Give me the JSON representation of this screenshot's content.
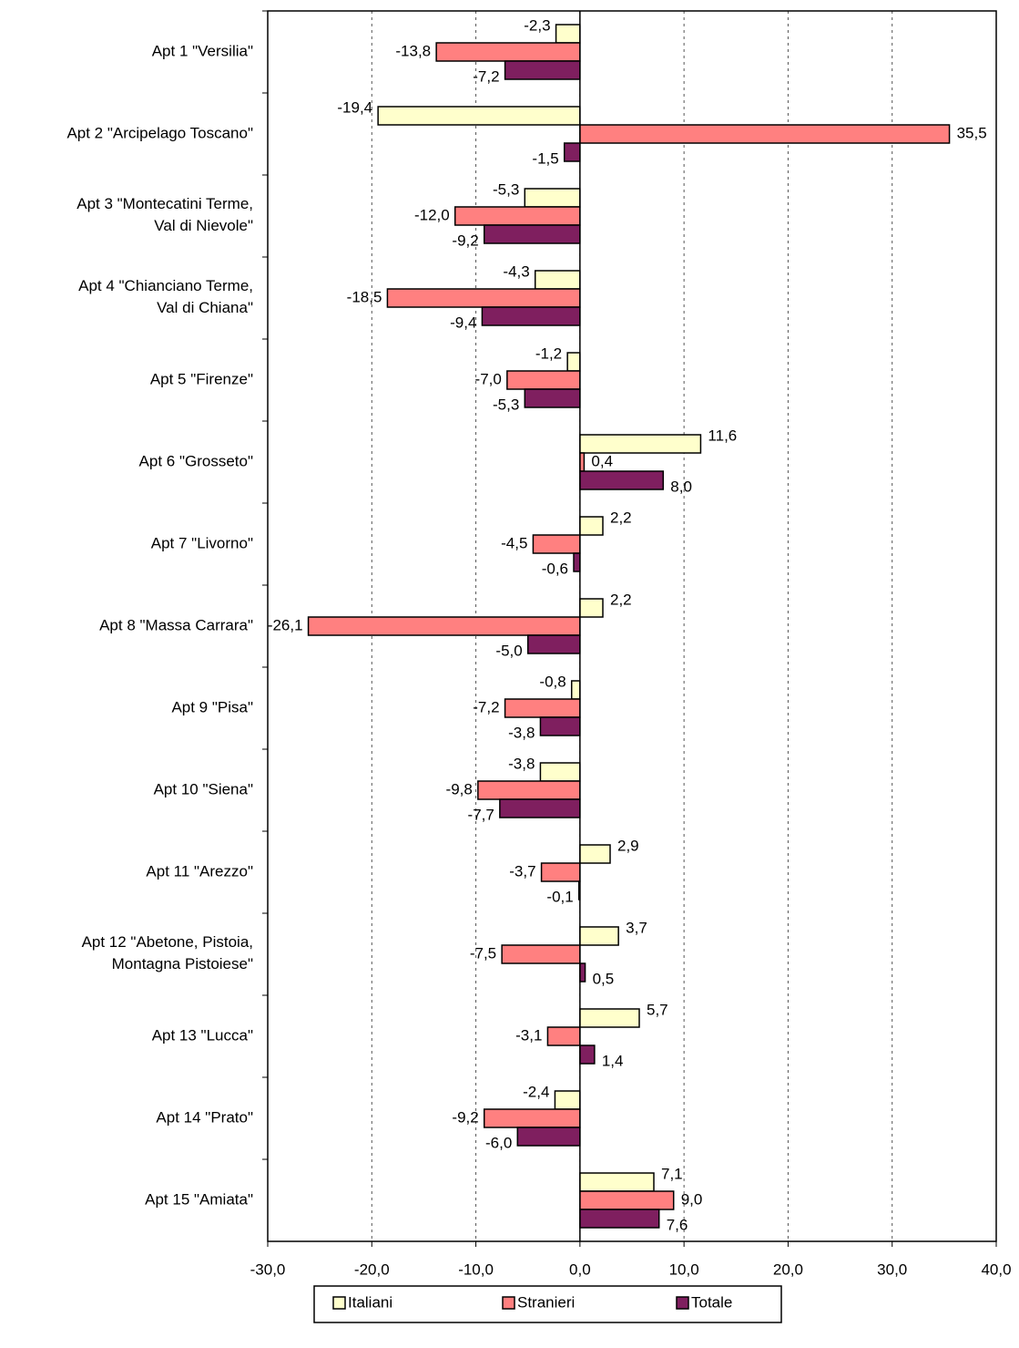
{
  "chart_data": {
    "type": "hbar",
    "categories": [
      "Apt 1 \"Versilia\"",
      "Apt 2 \"Arcipelago Toscano\"",
      "Apt 3 \"Montecatini Terme,\nVal di Nievole\"",
      "Apt 4 \"Chianciano Terme,\nVal di Chiana\"",
      "Apt 5 \"Firenze\"",
      "Apt 6 \"Grosseto\"",
      "Apt 7 \"Livorno\"",
      "Apt 8 \"Massa Carrara\"",
      "Apt 9 \"Pisa\"",
      "Apt 10 \"Siena\"",
      "Apt 11 \"Arezzo\"",
      "Apt 12 \"Abetone, Pistoia,\nMontagna Pistoiese\"",
      "Apt 13 \"Lucca\"",
      "Apt 14 \"Prato\"",
      "Apt 15 \"Amiata\""
    ],
    "series": [
      {
        "name": "Italiani",
        "color": "#ffffcc",
        "values": [
          -2.3,
          -19.4,
          -5.3,
          -4.3,
          -1.2,
          11.6,
          2.2,
          2.2,
          -0.8,
          -3.8,
          2.9,
          3.7,
          5.7,
          -2.4,
          7.1
        ],
        "value_labels": [
          "-2,3",
          "-19,4",
          "-5,3",
          "-4,3",
          "-1,2",
          "11,6",
          "2,2",
          "2,2",
          "-0,8",
          "-3,8",
          "2,9",
          "3,7",
          "5,7",
          "-2,4",
          "7,1"
        ]
      },
      {
        "name": "Stranieri",
        "color": "#ff8080",
        "values": [
          -13.8,
          35.5,
          -12.0,
          -18.5,
          -7.0,
          0.4,
          -4.5,
          -26.1,
          -7.2,
          -9.8,
          -3.7,
          -7.5,
          -3.1,
          -9.2,
          9.0
        ],
        "value_labels": [
          "-13,8",
          "35,5",
          "-12,0",
          "-18,5",
          "-7,0",
          "0,4",
          "-4,5",
          "-26,1",
          "-7,2",
          "-9,8",
          "-3,7",
          "-7,5",
          "-3,1",
          "-9,2",
          "9,0"
        ]
      },
      {
        "name": "Totale",
        "color": "#7f1f5f",
        "values": [
          -7.2,
          -1.5,
          -9.2,
          -9.4,
          -5.3,
          8.0,
          -0.6,
          -5.0,
          -3.8,
          -7.7,
          -0.1,
          0.5,
          1.4,
          -6.0,
          7.6
        ],
        "value_labels": [
          "-7,2",
          "-1,5",
          "-9,2",
          "-9,4",
          "-5,3",
          "8,0",
          "-0,6",
          "-5,0",
          "-3,8",
          "-7,7",
          "-0,1",
          "0,5",
          "1,4",
          "-6,0",
          "7,6"
        ]
      }
    ],
    "xlim": [
      -30,
      40
    ],
    "xticks": [
      {
        "value": -30,
        "label": "-30,0"
      },
      {
        "value": -20,
        "label": "-20,0"
      },
      {
        "value": -10,
        "label": "-10,0"
      },
      {
        "value": 0,
        "label": "0,0"
      },
      {
        "value": 10,
        "label": "10,0"
      },
      {
        "value": 20,
        "label": "20,0"
      },
      {
        "value": 30,
        "label": "30,0"
      },
      {
        "value": 40,
        "label": "40,0"
      }
    ],
    "grid": true,
    "legend": "bottom"
  }
}
